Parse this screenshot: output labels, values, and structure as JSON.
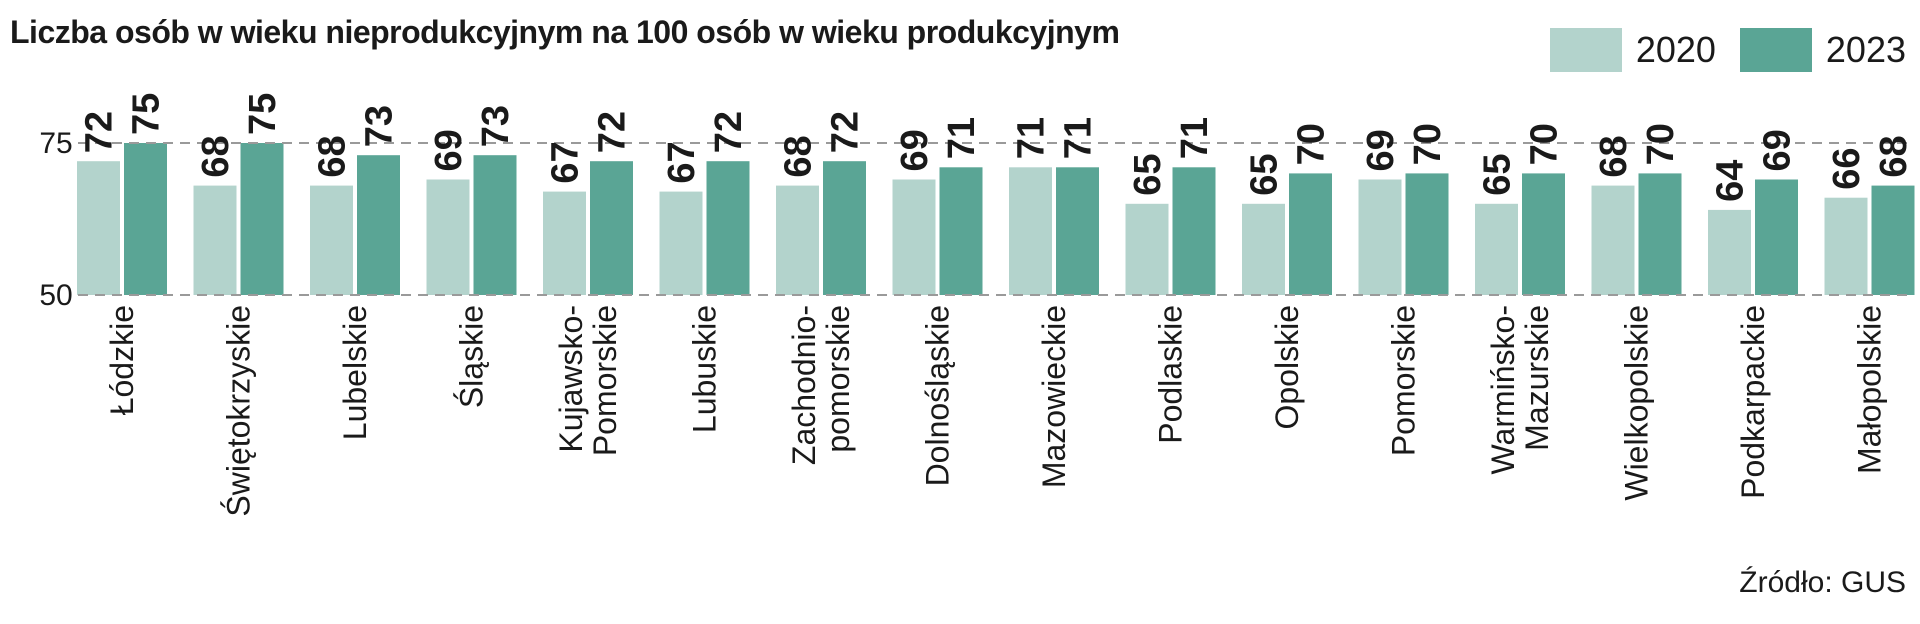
{
  "chart_data": {
    "type": "bar",
    "title": "Liczba osób w wieku nieprodukcyjnym na 100 osób w wieku produkcyjnym",
    "source": "Źródło: GUS",
    "xlabel": "",
    "ylabel": "",
    "ylim": [
      50,
      80
    ],
    "yticks": [
      50,
      75
    ],
    "grid": true,
    "legend_position": "top-right",
    "categories": [
      [
        "Łódzkie"
      ],
      [
        "Świętokrzyskie"
      ],
      [
        "Lubelskie"
      ],
      [
        "Śląskie"
      ],
      [
        "Kujawsko-",
        "Pomorskie"
      ],
      [
        "Lubuskie"
      ],
      [
        "Zachodnio-",
        "pomorskie"
      ],
      [
        "Dolnośląskie"
      ],
      [
        "Mazowieckie"
      ],
      [
        "Podlaskie"
      ],
      [
        "Opolskie"
      ],
      [
        "Pomorskie"
      ],
      [
        "Warmińsko-",
        "Mazurskie"
      ],
      [
        "Wielkopolskie"
      ],
      [
        "Podkarpackie"
      ],
      [
        "Małopolskie"
      ]
    ],
    "series": [
      {
        "name": "2020",
        "color": "#b3d3cc",
        "values": [
          72,
          68,
          68,
          69,
          67,
          67,
          68,
          69,
          71,
          65,
          65,
          69,
          65,
          68,
          64,
          66
        ]
      },
      {
        "name": "2023",
        "color": "#5aa595",
        "values": [
          75,
          75,
          73,
          73,
          72,
          72,
          72,
          71,
          71,
          71,
          70,
          70,
          70,
          70,
          69,
          68
        ]
      }
    ]
  }
}
